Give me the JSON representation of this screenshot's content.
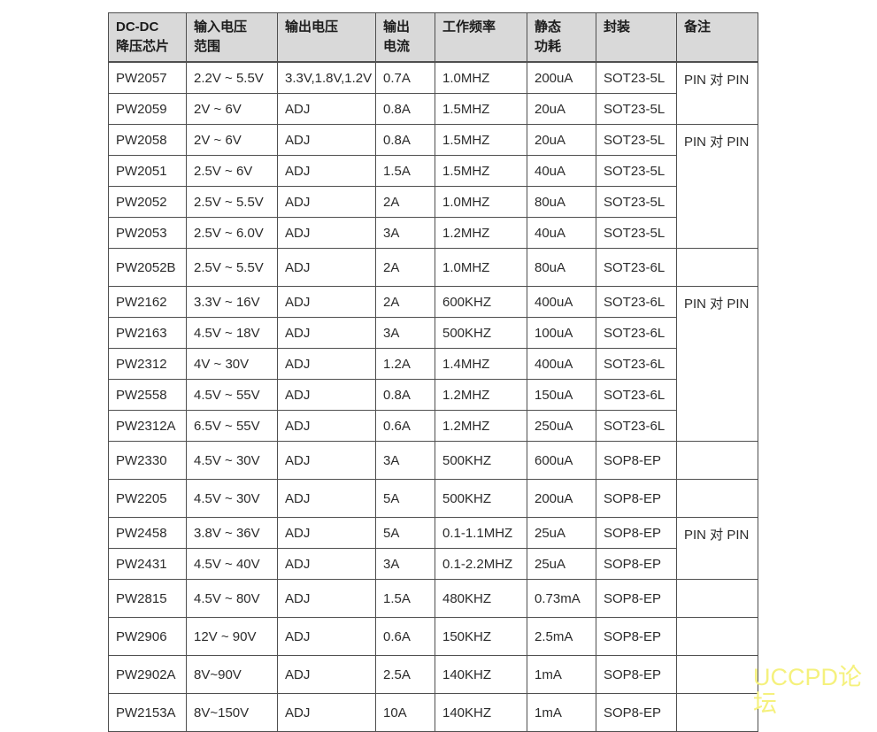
{
  "table": {
    "headers": [
      {
        "line1": "DC-DC",
        "line2": "降压芯片"
      },
      {
        "line1": "输入电压",
        "line2": "范围"
      },
      {
        "line1": "输出电压",
        "line2": ""
      },
      {
        "line1": "输出",
        "line2": "电流"
      },
      {
        "line1": "工作频率",
        "line2": ""
      },
      {
        "line1": "静态",
        "line2": "功耗"
      },
      {
        "line1": "封装",
        "line2": ""
      },
      {
        "line1": "备注",
        "line2": ""
      }
    ],
    "rows": [
      {
        "chip": "PW2057",
        "vin": "2.2V ~ 5.5V",
        "vout": "3.3V,1.8V,1.2V",
        "iout": "0.7A",
        "freq": "1.0MHZ",
        "iq": "200uA",
        "pkg": "SOT23-5L"
      },
      {
        "chip": "PW2059",
        "vin": "2V ~ 6V",
        "vout": "ADJ",
        "iout": "0.8A",
        "freq": "1.5MHZ",
        "iq": "20uA",
        "pkg": "SOT23-5L"
      },
      {
        "chip": "PW2058",
        "vin": "2V ~ 6V",
        "vout": "ADJ",
        "iout": "0.8A",
        "freq": "1.5MHZ",
        "iq": "20uA",
        "pkg": "SOT23-5L"
      },
      {
        "chip": "PW2051",
        "vin": "2.5V ~ 6V",
        "vout": "ADJ",
        "iout": "1.5A",
        "freq": "1.5MHZ",
        "iq": "40uA",
        "pkg": "SOT23-5L"
      },
      {
        "chip": "PW2052",
        "vin": "2.5V ~ 5.5V",
        "vout": "ADJ",
        "iout": "2A",
        "freq": "1.0MHZ",
        "iq": "80uA",
        "pkg": "SOT23-5L"
      },
      {
        "chip": "PW2053",
        "vin": "2.5V ~ 6.0V",
        "vout": "ADJ",
        "iout": "3A",
        "freq": "1.2MHZ",
        "iq": "40uA",
        "pkg": "SOT23-5L"
      },
      {
        "chip": "PW2052B",
        "vin": "2.5V ~ 5.5V",
        "vout": "ADJ",
        "iout": "2A",
        "freq": "1.0MHZ",
        "iq": "80uA",
        "pkg": "SOT23-6L"
      },
      {
        "chip": "PW2162",
        "vin": "3.3V ~ 16V",
        "vout": "ADJ",
        "iout": "2A",
        "freq": "600KHZ",
        "iq": "400uA",
        "pkg": "SOT23-6L"
      },
      {
        "chip": "PW2163",
        "vin": "4.5V ~ 18V",
        "vout": "ADJ",
        "iout": "3A",
        "freq": "500KHZ",
        "iq": "100uA",
        "pkg": "SOT23-6L"
      },
      {
        "chip": "PW2312",
        "vin": "4V ~ 30V",
        "vout": "ADJ",
        "iout": "1.2A",
        "freq": "1.4MHZ",
        "iq": "400uA",
        "pkg": "SOT23-6L"
      },
      {
        "chip": "PW2558",
        "vin": "4.5V ~ 55V",
        "vout": "ADJ",
        "iout": "0.8A",
        "freq": "1.2MHZ",
        "iq": "150uA",
        "pkg": "SOT23-6L"
      },
      {
        "chip": "PW2312A",
        "vin": "6.5V ~ 55V",
        "vout": "ADJ",
        "iout": "0.6A",
        "freq": "1.2MHZ",
        "iq": "250uA",
        "pkg": "SOT23-6L"
      },
      {
        "chip": "PW2330",
        "vin": "4.5V ~ 30V",
        "vout": "ADJ",
        "iout": "3A",
        "freq": "500KHZ",
        "iq": "600uA",
        "pkg": "SOP8-EP"
      },
      {
        "chip": "PW2205",
        "vin": "4.5V ~ 30V",
        "vout": "ADJ",
        "iout": "5A",
        "freq": "500KHZ",
        "iq": "200uA",
        "pkg": "SOP8-EP"
      },
      {
        "chip": "PW2458",
        "vin": "3.8V ~ 36V",
        "vout": "ADJ",
        "iout": "5A",
        "freq": "0.1-1.1MHZ",
        "iq": "25uA",
        "pkg": "SOP8-EP"
      },
      {
        "chip": "PW2431",
        "vin": "4.5V ~ 40V",
        "vout": "ADJ",
        "iout": "3A",
        "freq": "0.1-2.2MHZ",
        "iq": "25uA",
        "pkg": "SOP8-EP"
      },
      {
        "chip": "PW2815",
        "vin": "4.5V ~ 80V",
        "vout": "ADJ",
        "iout": "1.5A",
        "freq": "480KHZ",
        "iq": "0.73mA",
        "pkg": "SOP8-EP"
      },
      {
        "chip": "PW2906",
        "vin": "12V ~ 90V",
        "vout": "ADJ",
        "iout": "0.6A",
        "freq": "150KHZ",
        "iq": "2.5mA",
        "pkg": "SOP8-EP"
      },
      {
        "chip": "PW2902A",
        "vin": "8V~90V",
        "vout": "ADJ",
        "iout": "2.5A",
        "freq": "140KHZ",
        "iq": "1mA",
        "pkg": "SOP8-EP"
      },
      {
        "chip": "PW2153A",
        "vin": "8V~150V",
        "vout": "ADJ",
        "iout": "10A",
        "freq": "140KHZ",
        "iq": "1mA",
        "pkg": "SOP8-EP"
      }
    ],
    "remarks": [
      {
        "row_start": 0,
        "span": 2,
        "text": "PIN 对 PIN"
      },
      {
        "row_start": 2,
        "span": 4,
        "text": "PIN 对 PIN"
      },
      {
        "row_start": 6,
        "span": 1,
        "text": ""
      },
      {
        "row_start": 7,
        "span": 5,
        "text": "PIN 对 PIN"
      },
      {
        "row_start": 12,
        "span": 1,
        "text": ""
      },
      {
        "row_start": 13,
        "span": 1,
        "text": ""
      },
      {
        "row_start": 14,
        "span": 2,
        "text": "PIN 对 PIN"
      },
      {
        "row_start": 16,
        "span": 1,
        "text": ""
      },
      {
        "row_start": 17,
        "span": 1,
        "text": ""
      },
      {
        "row_start": 18,
        "span": 1,
        "text": ""
      },
      {
        "row_start": 19,
        "span": 1,
        "text": ""
      }
    ]
  },
  "watermark": {
    "text": "UCCPD论坛",
    "color": "#f5f17d"
  },
  "colors": {
    "header_bg": "#d9d9d9",
    "border": "#4f4f4f",
    "text": "#2b2b2b"
  }
}
